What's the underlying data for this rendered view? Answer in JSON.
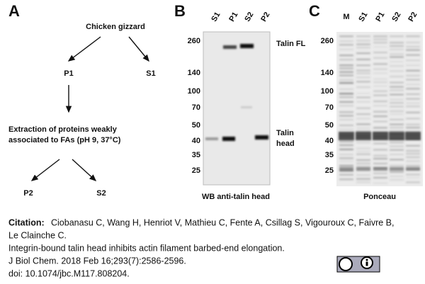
{
  "panel_a": {
    "label": "A",
    "nodes": [
      "Chicken gizzard",
      "P1",
      "S1",
      "Extraction of proteins weakly",
      "associated to FAs (pH 9, 37°C)",
      "P2",
      "S2"
    ]
  },
  "panel_b": {
    "label": "B",
    "lanes": [
      "S1",
      "P1",
      "S2",
      "P2"
    ],
    "markers": [
      260,
      140,
      100,
      70,
      50,
      40,
      35,
      25
    ],
    "band_labels": [
      "Talin FL",
      "Talin",
      "head"
    ],
    "caption": "WB anti-talin head"
  },
  "panel_c": {
    "label": "C",
    "lanes": [
      "M",
      "S1",
      "P1",
      "S2",
      "P2"
    ],
    "markers": [
      260,
      140,
      100,
      70,
      50,
      40,
      35,
      25
    ],
    "caption": "Ponceau"
  },
  "citation": {
    "label": "Citation:",
    "lines": [
      "Ciobanasu C, Wang H, Henriot V, Mathieu C, Fente A, Csillag S, Vigouroux C, Faivre B,",
      "Le Clainche C.",
      "Integrin-bound talin head inhibits actin filament barbed-end elongation.",
      "J Biol Chem. 2018 Feb 16;293(7):2586-2596.",
      "doi: 10.1074/jbc.M117.808204."
    ]
  }
}
